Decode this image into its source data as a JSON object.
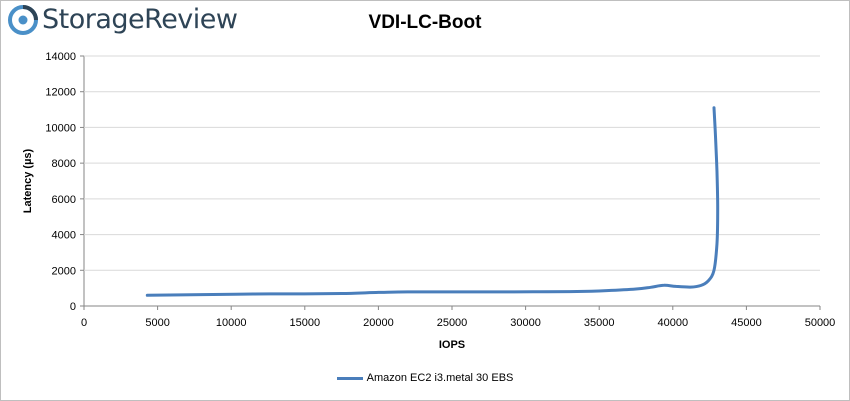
{
  "brand": {
    "name": "StorageReview"
  },
  "colors": {
    "series": "#4a7ebb",
    "logo": "#2e4456",
    "grid": "#d9d9d9"
  },
  "chart_data": {
    "type": "line",
    "title": "VDI-LC-Boot",
    "xlabel": "IOPS",
    "ylabel": "Latency (µs)",
    "xlim": [
      0,
      50000
    ],
    "ylim": [
      0,
      14000
    ],
    "xticks": [
      "0",
      "5000",
      "10000",
      "15000",
      "20000",
      "25000",
      "30000",
      "35000",
      "40000",
      "45000",
      "50000"
    ],
    "yticks": [
      "0",
      "2000",
      "4000",
      "6000",
      "8000",
      "10000",
      "12000",
      "14000"
    ],
    "grid": "horizontal",
    "legend": "bottom",
    "series": [
      {
        "name": "Amazon EC2 i3.metal 30 EBS",
        "x": [
          4300,
          8000,
          11500,
          15000,
          17500,
          20000,
          22000,
          25000,
          28000,
          30500,
          33500,
          35500,
          37500,
          38500,
          39400,
          40200,
          41200,
          41900,
          42400,
          42800,
          43000,
          43050,
          43000,
          42900,
          42800
        ],
        "y": [
          600,
          640,
          670,
          680,
          700,
          760,
          790,
          790,
          790,
          800,
          810,
          860,
          950,
          1050,
          1160,
          1100,
          1060,
          1150,
          1400,
          2000,
          3500,
          5500,
          7500,
          9500,
          11100
        ]
      }
    ]
  }
}
